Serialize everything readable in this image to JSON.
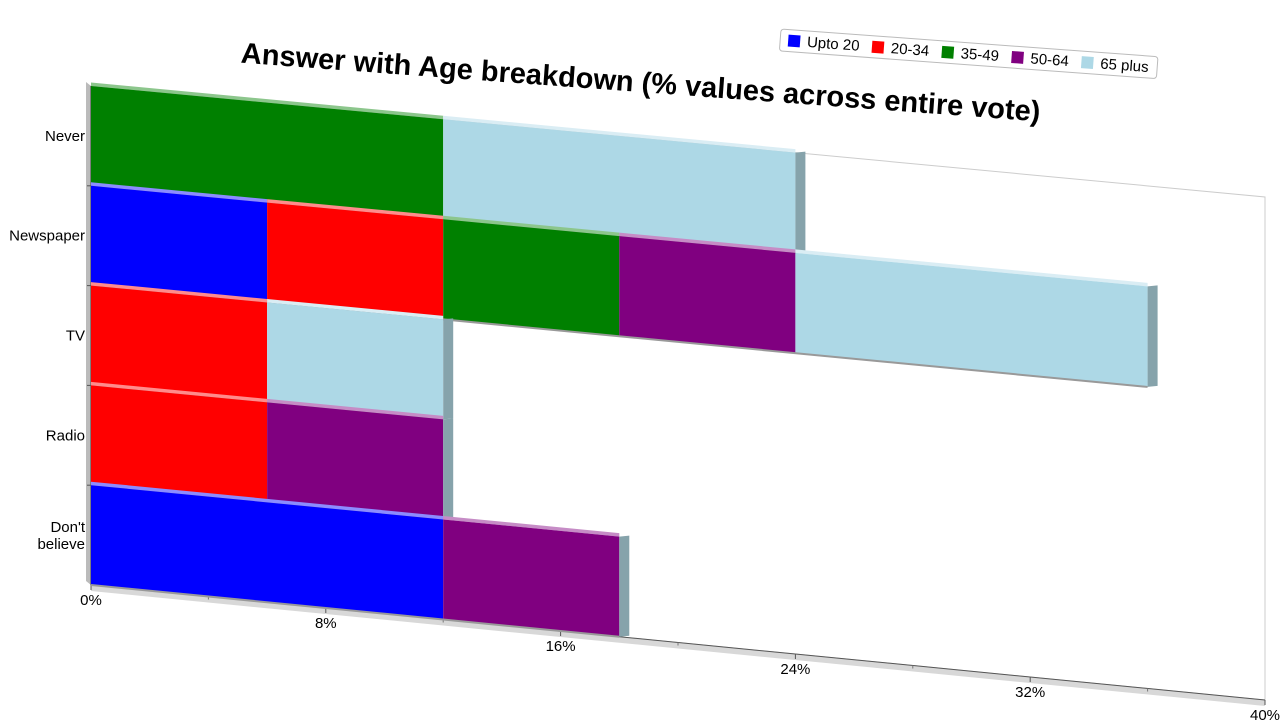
{
  "chart_data": {
    "type": "bar",
    "orientation": "horizontal",
    "stacked": true,
    "title": "Answer with Age breakdown (% values across entire vote)",
    "categories": [
      "Never",
      "Newspaper",
      "TV",
      "Radio",
      "Don't believe"
    ],
    "series": [
      {
        "name": "Upto 20",
        "color": "#0000ff",
        "values": [
          0,
          6,
          0,
          0,
          12
        ]
      },
      {
        "name": "20-34",
        "color": "#ff0000",
        "values": [
          0,
          6,
          6,
          6,
          0
        ]
      },
      {
        "name": "35-49",
        "color": "#008000",
        "values": [
          12,
          6,
          0,
          0,
          0
        ]
      },
      {
        "name": "50-64",
        "color": "#800080",
        "values": [
          0,
          6,
          0,
          6,
          6
        ]
      },
      {
        "name": "65 plus",
        "color": "#add8e6",
        "values": [
          12,
          12,
          6,
          0,
          0
        ]
      }
    ],
    "x_ticks": [
      "0%",
      "8%",
      "16%",
      "24%",
      "32%",
      "40%"
    ],
    "xlim": [
      0,
      40
    ],
    "legend_position": "top-right",
    "grid": false
  }
}
